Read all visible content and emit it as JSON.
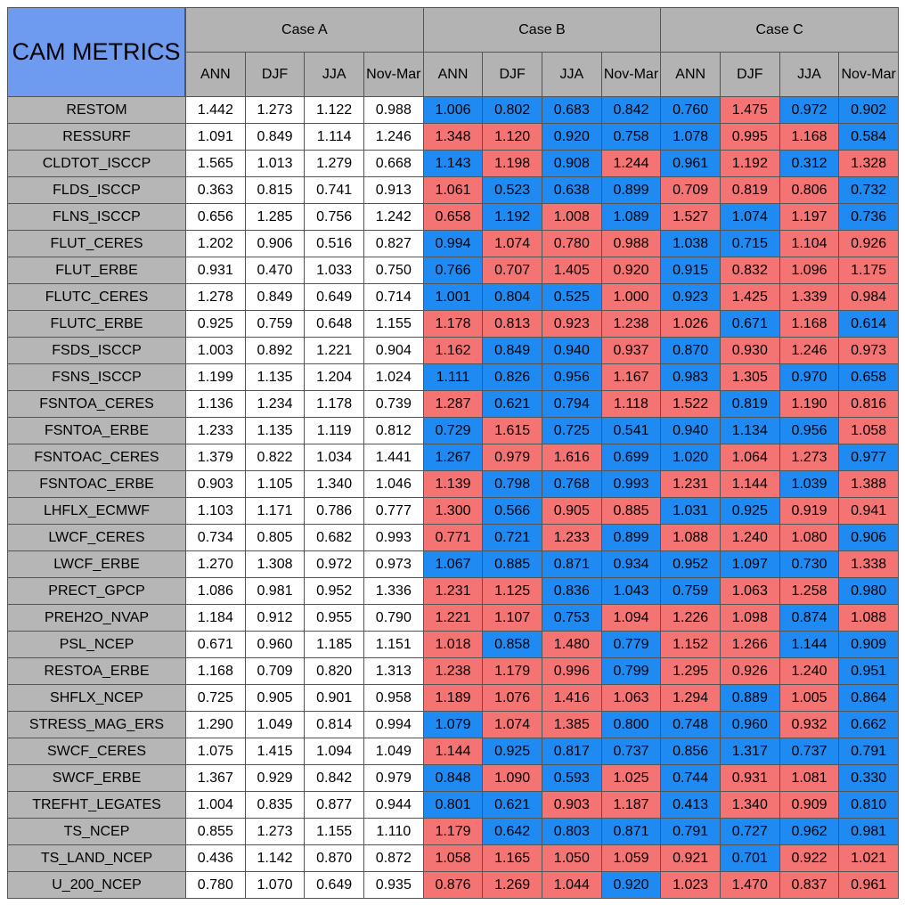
{
  "title": "CAM METRICS",
  "groups": [
    "Case A",
    "Case B",
    "Case C"
  ],
  "columns": [
    "ANN",
    "DJF",
    "JJA",
    "Nov-Mar"
  ],
  "cell_colors": {
    "base": "#ffffff",
    "above": "#f47373",
    "below": "#1f8bf2"
  },
  "rows": [
    {
      "label": "RESTOM",
      "values": [
        "1.442",
        "1.273",
        "1.122",
        "0.988",
        "1.006",
        "0.802",
        "0.683",
        "0.842",
        "0.760",
        "1.475",
        "0.972",
        "0.902"
      ]
    },
    {
      "label": "RESSURF",
      "values": [
        "1.091",
        "0.849",
        "1.114",
        "1.246",
        "1.348",
        "1.120",
        "0.920",
        "0.758",
        "1.078",
        "0.995",
        "1.168",
        "0.584"
      ]
    },
    {
      "label": "CLDTOT_ISCCP",
      "values": [
        "1.565",
        "1.013",
        "1.279",
        "0.668",
        "1.143",
        "1.198",
        "0.908",
        "1.244",
        "0.961",
        "1.192",
        "0.312",
        "1.328"
      ]
    },
    {
      "label": "FLDS_ISCCP",
      "values": [
        "0.363",
        "0.815",
        "0.741",
        "0.913",
        "1.061",
        "0.523",
        "0.638",
        "0.899",
        "0.709",
        "0.819",
        "0.806",
        "0.732"
      ]
    },
    {
      "label": "FLNS_ISCCP",
      "values": [
        "0.656",
        "1.285",
        "0.756",
        "1.242",
        "0.658",
        "1.192",
        "1.008",
        "1.089",
        "1.527",
        "1.074",
        "1.197",
        "0.736"
      ]
    },
    {
      "label": "FLUT_CERES",
      "values": [
        "1.202",
        "0.906",
        "0.516",
        "0.827",
        "0.994",
        "1.074",
        "0.780",
        "0.988",
        "1.038",
        "0.715",
        "1.104",
        "0.926"
      ]
    },
    {
      "label": "FLUT_ERBE",
      "values": [
        "0.931",
        "0.470",
        "1.033",
        "0.750",
        "0.766",
        "0.707",
        "1.405",
        "0.920",
        "0.915",
        "0.832",
        "1.096",
        "1.175"
      ]
    },
    {
      "label": "FLUTC_CERES",
      "values": [
        "1.278",
        "0.849",
        "0.649",
        "0.714",
        "1.001",
        "0.804",
        "0.525",
        "1.000",
        "0.923",
        "1.425",
        "1.339",
        "0.984"
      ]
    },
    {
      "label": "FLUTC_ERBE",
      "values": [
        "0.925",
        "0.759",
        "0.648",
        "1.155",
        "1.178",
        "0.813",
        "0.923",
        "1.238",
        "1.026",
        "0.671",
        "1.168",
        "0.614"
      ]
    },
    {
      "label": "FSDS_ISCCP",
      "values": [
        "1.003",
        "0.892",
        "1.221",
        "0.904",
        "1.162",
        "0.849",
        "0.940",
        "0.937",
        "0.870",
        "0.930",
        "1.246",
        "0.973"
      ]
    },
    {
      "label": "FSNS_ISCCP",
      "values": [
        "1.199",
        "1.135",
        "1.204",
        "1.024",
        "1.111",
        "0.826",
        "0.956",
        "1.167",
        "0.983",
        "1.305",
        "0.970",
        "0.658"
      ]
    },
    {
      "label": "FSNTOA_CERES",
      "values": [
        "1.136",
        "1.234",
        "1.178",
        "0.739",
        "1.287",
        "0.621",
        "0.794",
        "1.118",
        "1.522",
        "0.819",
        "1.190",
        "0.816"
      ]
    },
    {
      "label": "FSNTOA_ERBE",
      "values": [
        "1.233",
        "1.135",
        "1.119",
        "0.812",
        "0.729",
        "1.615",
        "0.725",
        "0.541",
        "0.940",
        "1.134",
        "0.956",
        "1.058"
      ]
    },
    {
      "label": "FSNTOAC_CERES",
      "values": [
        "1.379",
        "0.822",
        "1.034",
        "1.441",
        "1.267",
        "0.979",
        "1.616",
        "0.699",
        "1.020",
        "1.064",
        "1.273",
        "0.977"
      ]
    },
    {
      "label": "FSNTOAC_ERBE",
      "values": [
        "0.903",
        "1.105",
        "1.340",
        "1.046",
        "1.139",
        "0.798",
        "0.768",
        "0.993",
        "1.231",
        "1.144",
        "1.039",
        "1.388"
      ]
    },
    {
      "label": "LHFLX_ECMWF",
      "values": [
        "1.103",
        "1.171",
        "0.786",
        "0.777",
        "1.300",
        "0.566",
        "0.905",
        "0.885",
        "1.031",
        "0.925",
        "0.919",
        "0.941"
      ]
    },
    {
      "label": "LWCF_CERES",
      "values": [
        "0.734",
        "0.805",
        "0.682",
        "0.993",
        "0.771",
        "0.721",
        "1.233",
        "0.899",
        "1.088",
        "1.240",
        "1.080",
        "0.906"
      ]
    },
    {
      "label": "LWCF_ERBE",
      "values": [
        "1.270",
        "1.308",
        "0.972",
        "0.973",
        "1.067",
        "0.885",
        "0.871",
        "0.934",
        "0.952",
        "1.097",
        "0.730",
        "1.338"
      ]
    },
    {
      "label": "PRECT_GPCP",
      "values": [
        "1.086",
        "0.981",
        "0.952",
        "1.336",
        "1.231",
        "1.125",
        "0.836",
        "1.043",
        "0.759",
        "1.063",
        "1.258",
        "0.980"
      ]
    },
    {
      "label": "PREH2O_NVAP",
      "values": [
        "1.184",
        "0.912",
        "0.955",
        "0.790",
        "1.221",
        "1.107",
        "0.753",
        "1.094",
        "1.226",
        "1.098",
        "0.874",
        "1.088"
      ]
    },
    {
      "label": "PSL_NCEP",
      "values": [
        "0.671",
        "0.960",
        "1.185",
        "1.151",
        "1.018",
        "0.858",
        "1.480",
        "0.779",
        "1.152",
        "1.266",
        "1.144",
        "0.909"
      ]
    },
    {
      "label": "RESTOA_ERBE",
      "values": [
        "1.168",
        "0.709",
        "0.820",
        "1.313",
        "1.238",
        "1.179",
        "0.996",
        "0.799",
        "1.295",
        "0.926",
        "1.240",
        "0.951"
      ]
    },
    {
      "label": "SHFLX_NCEP",
      "values": [
        "0.725",
        "0.905",
        "0.901",
        "0.958",
        "1.189",
        "1.076",
        "1.416",
        "1.063",
        "1.294",
        "0.889",
        "1.005",
        "0.864"
      ]
    },
    {
      "label": "STRESS_MAG_ERS",
      "values": [
        "1.290",
        "1.049",
        "0.814",
        "0.994",
        "1.079",
        "1.074",
        "1.385",
        "0.800",
        "0.748",
        "0.960",
        "0.932",
        "0.662"
      ]
    },
    {
      "label": "SWCF_CERES",
      "values": [
        "1.075",
        "1.415",
        "1.094",
        "1.049",
        "1.144",
        "0.925",
        "0.817",
        "0.737",
        "0.856",
        "1.317",
        "0.737",
        "0.791"
      ]
    },
    {
      "label": "SWCF_ERBE",
      "values": [
        "1.367",
        "0.929",
        "0.842",
        "0.979",
        "0.848",
        "1.090",
        "0.593",
        "1.025",
        "0.744",
        "0.931",
        "1.081",
        "0.330"
      ]
    },
    {
      "label": "TREFHT_LEGATES",
      "values": [
        "1.004",
        "0.835",
        "0.877",
        "0.944",
        "0.801",
        "0.621",
        "0.903",
        "1.187",
        "0.413",
        "1.340",
        "0.909",
        "0.810"
      ]
    },
    {
      "label": "TS_NCEP",
      "values": [
        "0.855",
        "1.273",
        "1.155",
        "1.110",
        "1.179",
        "0.642",
        "0.803",
        "0.871",
        "0.791",
        "0.727",
        "0.962",
        "0.981"
      ]
    },
    {
      "label": "TS_LAND_NCEP",
      "values": [
        "0.436",
        "1.142",
        "0.870",
        "0.872",
        "1.058",
        "1.165",
        "1.050",
        "1.059",
        "0.921",
        "0.701",
        "0.922",
        "1.021"
      ]
    },
    {
      "label": "U_200_NCEP",
      "values": [
        "0.780",
        "1.070",
        "0.649",
        "0.935",
        "0.876",
        "1.269",
        "1.044",
        "0.920",
        "1.023",
        "1.470",
        "0.837",
        "0.961"
      ]
    }
  ]
}
